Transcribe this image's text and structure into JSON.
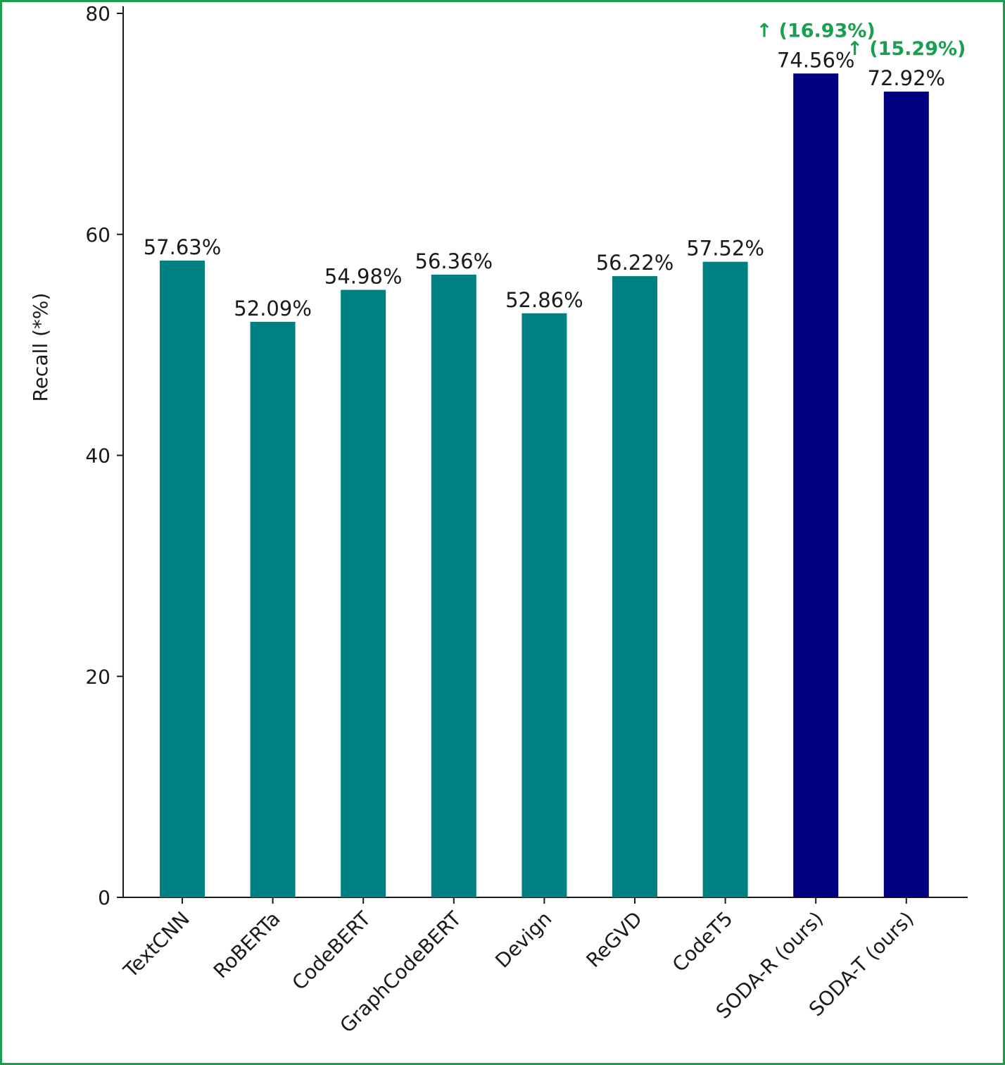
{
  "chart_data": {
    "type": "bar",
    "title": "",
    "xlabel": "",
    "ylabel": "Recall (*%)",
    "ylim": [
      0,
      80
    ],
    "yticks": [
      0,
      20,
      40,
      60,
      80
    ],
    "grid": false,
    "categories": [
      "TextCNN",
      "RoBERTa",
      "CodeBERT",
      "GraphCodeBERT",
      "Devign",
      "ReGVD",
      "CodeT5",
      "SODA-R (ours)",
      "SODA-T (ours)"
    ],
    "values": [
      57.63,
      52.09,
      54.98,
      56.36,
      52.86,
      56.22,
      57.52,
      74.56,
      72.92
    ],
    "value_labels": [
      "57.63%",
      "52.09%",
      "54.98%",
      "56.36%",
      "52.86%",
      "56.22%",
      "57.52%",
      "74.56%",
      "72.92%"
    ],
    "bar_colors": [
      "#008080",
      "#008080",
      "#008080",
      "#008080",
      "#008080",
      "#008080",
      "#008080",
      "#000080",
      "#000080"
    ],
    "annotations": [
      {
        "category": "SODA-R (ours)",
        "text": "↑ (16.93%)",
        "color": "#1a9e50"
      },
      {
        "category": "SODA-T (ours)",
        "text": "↑ (15.29%)",
        "color": "#1a9e50"
      }
    ],
    "frame_color": "#1a9e50"
  }
}
